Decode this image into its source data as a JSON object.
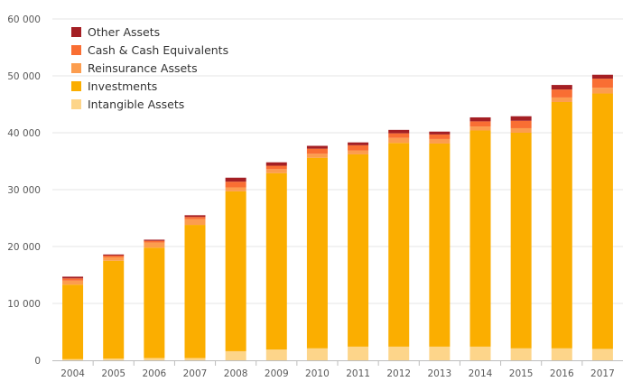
{
  "chart_data": {
    "type": "bar",
    "stacked": true,
    "title": "",
    "xlabel": "",
    "ylabel": "",
    "ylim": [
      0,
      60000
    ],
    "yticks": [
      0,
      10000,
      20000,
      30000,
      40000,
      50000,
      60000
    ],
    "ytick_labels": [
      "0",
      "10 000",
      "20 000",
      "30 000",
      "40 000",
      "50 000",
      "60 000"
    ],
    "grid": true,
    "legend_position": "top-left",
    "categories": [
      "2004",
      "2005",
      "2006",
      "2007",
      "2008",
      "2009",
      "2010",
      "2011",
      "2012",
      "2013",
      "2014",
      "2015",
      "2016",
      "2017"
    ],
    "series": [
      {
        "name": "Intangible Assets",
        "color": "#fdd58a",
        "values": [
          200,
          300,
          400,
          400,
          1600,
          1900,
          2100,
          2400,
          2400,
          2400,
          2400,
          2100,
          2100,
          2000
        ]
      },
      {
        "name": "Investments",
        "color": "#fbae00",
        "values": [
          13100,
          17200,
          19400,
          23400,
          28100,
          31000,
          33500,
          33800,
          35800,
          35700,
          38000,
          37900,
          43300,
          44900
        ]
      },
      {
        "name": "Reinsurance Assets",
        "color": "#fc9d4f",
        "values": [
          700,
          600,
          900,
          1000,
          700,
          700,
          700,
          700,
          900,
          800,
          700,
          800,
          800,
          1000
        ]
      },
      {
        "name": "Cash & Cash Equivalents",
        "color": "#f96e33",
        "values": [
          400,
          300,
          300,
          400,
          1000,
          600,
          900,
          900,
          800,
          800,
          900,
          1300,
          1400,
          1600
        ]
      },
      {
        "name": "Other Assets",
        "color": "#a41f24",
        "values": [
          300,
          200,
          200,
          300,
          700,
          600,
          500,
          500,
          600,
          500,
          700,
          800,
          800,
          700
        ]
      }
    ],
    "legend_order": [
      "Other Assets",
      "Cash & Cash Equivalents",
      "Reinsurance Assets",
      "Investments",
      "Intangible Assets"
    ]
  }
}
